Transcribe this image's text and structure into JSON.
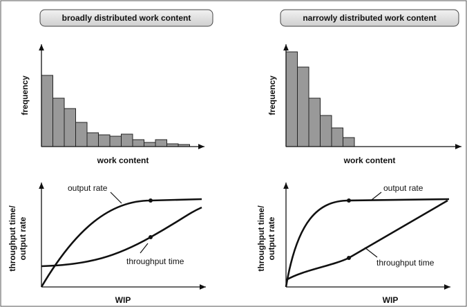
{
  "panels": [
    {
      "title": "broadly distributed work content",
      "histogram": {
        "y_label": "frequency",
        "x_label": "work content",
        "values": [
          103,
          70,
          55,
          35,
          20,
          17,
          15,
          18,
          10,
          6,
          10,
          4,
          3
        ]
      },
      "curves": {
        "y_label": [
          "throughput time/",
          "output rate"
        ],
        "x_label": "WIP",
        "output_label": "output rate",
        "throughput_label": "throughput time"
      }
    },
    {
      "title": "narrowly distributed work content",
      "histogram": {
        "y_label": "frequency",
        "x_label": "work content",
        "values": [
          137,
          115,
          70,
          45,
          27,
          13
        ]
      },
      "curves": {
        "y_label": [
          "throughput time/",
          "output rate"
        ],
        "x_label": "WIP",
        "output_label": "output rate",
        "throughput_label": "throughput time"
      }
    }
  ]
}
